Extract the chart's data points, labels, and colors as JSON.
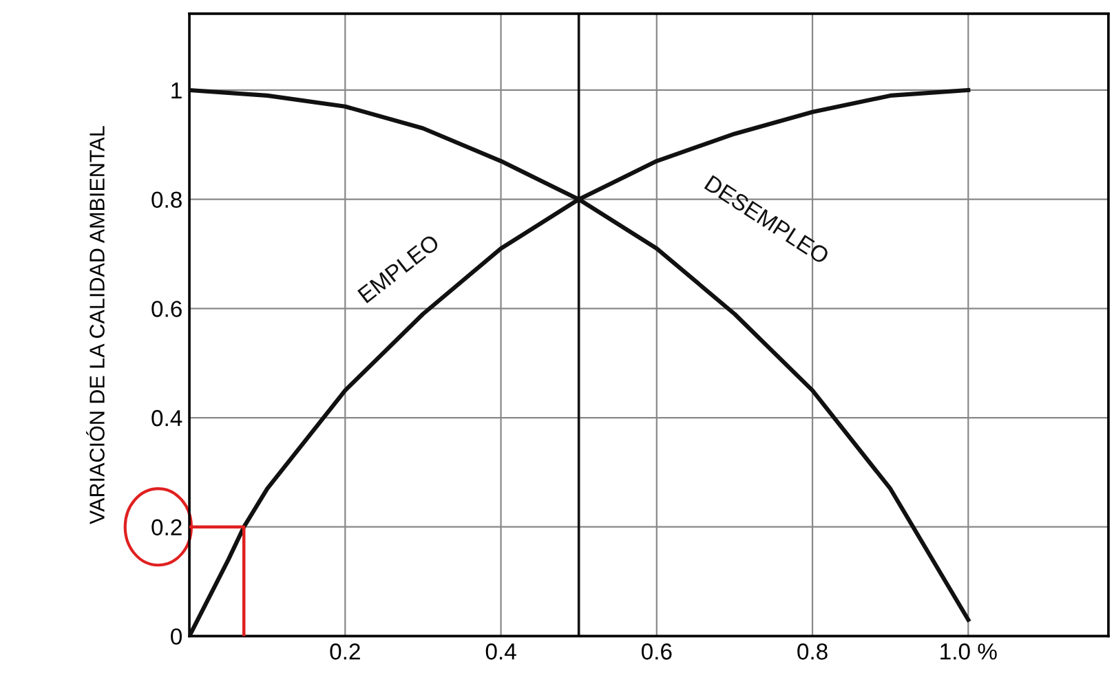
{
  "chart_data": {
    "type": "line",
    "ylabel": "VARIACIÓN DE LA CALIDAD AMBIENTAL",
    "xlim": [
      0,
      1.18
    ],
    "ylim": [
      0,
      1.14
    ],
    "xticks": [
      {
        "value": 0.2,
        "label": "0.2"
      },
      {
        "value": 0.4,
        "label": "0.4"
      },
      {
        "value": 0.6,
        "label": "0.6"
      },
      {
        "value": 0.8,
        "label": "0.8"
      },
      {
        "value": 1.0,
        "label": "1.0 %"
      }
    ],
    "yticks": [
      0,
      0.2,
      0.4,
      0.6,
      0.8,
      1
    ],
    "grid": true,
    "marker": "none",
    "line_style": "solid",
    "series": [
      {
        "name": "EMPLEO",
        "color": "#111111",
        "x": [
          0,
          0.05,
          0.07,
          0.1,
          0.2,
          0.3,
          0.4,
          0.5,
          0.6,
          0.7,
          0.8,
          0.9,
          1.0
        ],
        "values": [
          0,
          0.14,
          0.2,
          0.27,
          0.45,
          0.59,
          0.71,
          0.8,
          0.87,
          0.92,
          0.96,
          0.99,
          1.0
        ]
      },
      {
        "name": "DESEMPLEO",
        "color": "#111111",
        "x": [
          0,
          0.1,
          0.2,
          0.3,
          0.4,
          0.5,
          0.6,
          0.7,
          0.8,
          0.9,
          1.0
        ],
        "values": [
          1,
          0.99,
          0.97,
          0.93,
          0.87,
          0.8,
          0.71,
          0.59,
          0.45,
          0.27,
          0.03
        ]
      },
      {
        "color": "#e02020",
        "x": [
          0.07,
          0.07,
          0
        ],
        "values": [
          0,
          0.2,
          0.2
        ]
      }
    ],
    "ref_lines": [
      {
        "axis": "x",
        "value": 0.5,
        "color": "#111111"
      }
    ]
  }
}
